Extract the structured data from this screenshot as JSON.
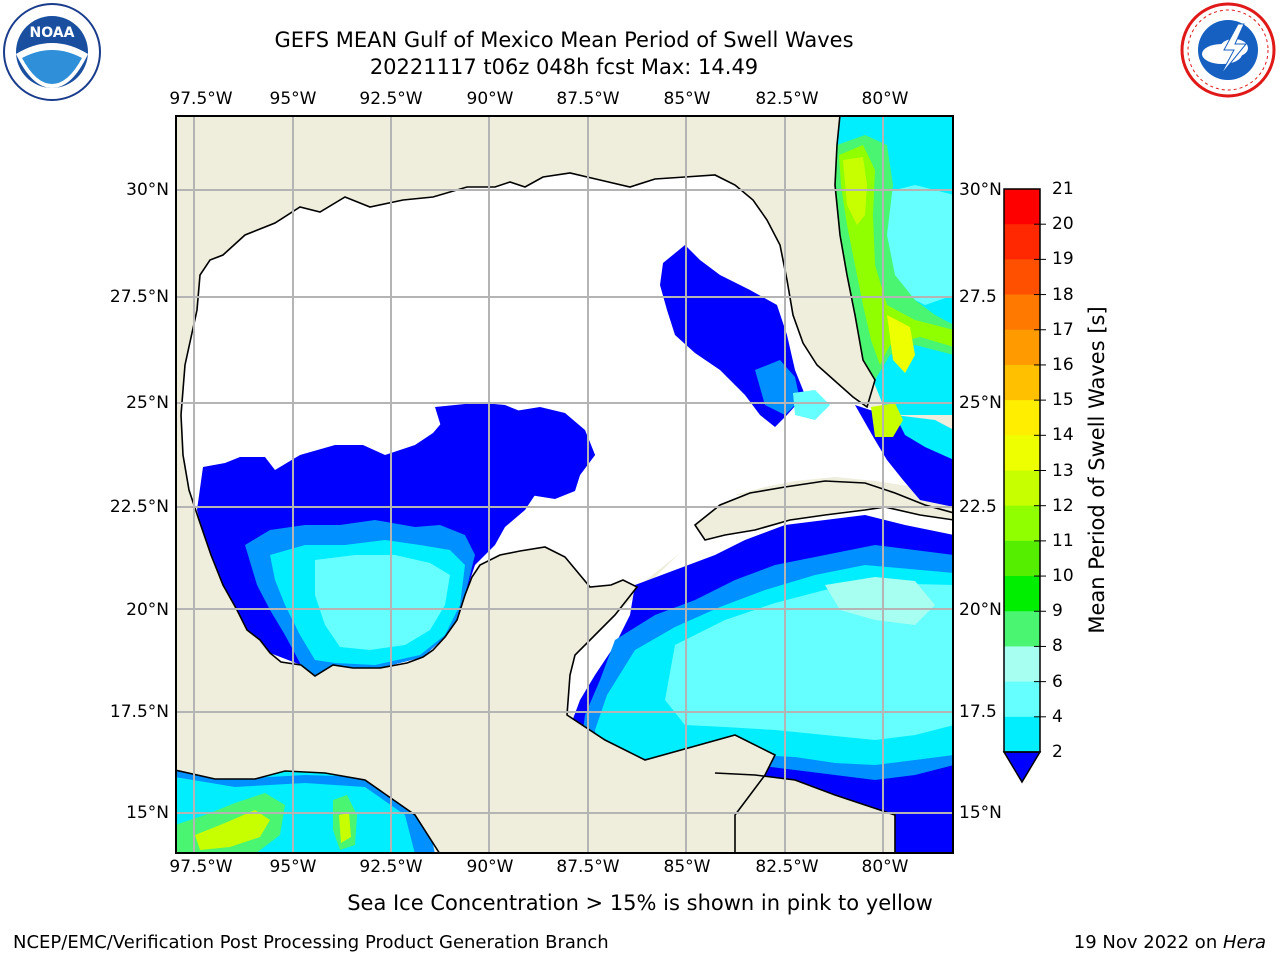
{
  "header": {
    "title_line1": "GEFS MEAN Gulf of Mexico Mean Period of Swell Waves",
    "title_line2": "20221117 t06z 048h fcst   Max: 14.49"
  },
  "logos": {
    "left": {
      "text": "NOAA",
      "ring": "NATIONAL OCEANIC AND ATMOSPHERIC ADMINISTRATION · U.S. DEPARTMENT OF COMMERCE"
    },
    "right": {
      "ring": "NATIONAL WEATHER SERVICE"
    }
  },
  "map": {
    "lon_labels": [
      "97.5°W",
      "95°W",
      "92.5°W",
      "90°W",
      "87.5°W",
      "85°W",
      "82.5°W",
      "80°W"
    ],
    "lat_labels_left": [
      "30°N",
      "27.5°N",
      "25°N",
      "22.5°N",
      "20°N",
      "17.5°N",
      "15°N"
    ],
    "lat_labels_right": [
      "30°N",
      "27.5",
      "25°N",
      "22.5",
      "20°N",
      "17.5",
      "15°N"
    ],
    "colors": {
      "land": "#efeedc",
      "no_data": "#ffffff",
      "grid": "#b4b4b4",
      "coast": "#000000"
    }
  },
  "colorbar": {
    "label": "Mean Period of Swell Waves [s]",
    "ticks": [
      "21",
      "20",
      "19",
      "18",
      "17",
      "16",
      "15",
      "14",
      "13",
      "12",
      "11",
      "10",
      "9",
      "8",
      "6",
      "4",
      "2"
    ],
    "colors": [
      "#ff0000",
      "#ff2800",
      "#ff5000",
      "#ff7800",
      "#ff9b00",
      "#ffc000",
      "#ffee00",
      "#eeff00",
      "#c8ff00",
      "#90ff00",
      "#55ee00",
      "#00ee00",
      "#49f571",
      "#a6fff1",
      "#66ffff",
      "#00eeff",
      "#0090ff",
      "#0000ff"
    ]
  },
  "note": "Sea Ice Concentration > 15% is shown in pink to yellow",
  "footer": {
    "left": "NCEP/EMC/Verification Post Processing Product Generation Branch",
    "right_date": "19 Nov 2022 on ",
    "right_machine": "Hera"
  }
}
